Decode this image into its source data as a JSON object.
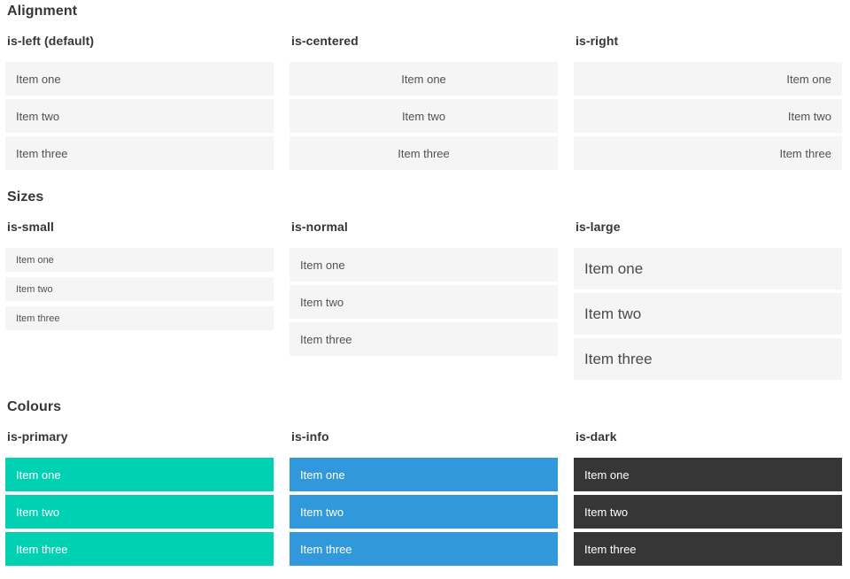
{
  "colors": {
    "item_background_light": "#f5f5f5",
    "item_text": "#515151",
    "primary": "#00d1b2",
    "info": "#3298dc",
    "dark": "#363636",
    "heading_text": "#363636",
    "colored_item_text": "#ffffff"
  },
  "sections": [
    {
      "title": "Alignment",
      "columns": [
        {
          "label": "is-left (default)",
          "items": [
            "Item one",
            "Item two",
            "Item three"
          ]
        },
        {
          "label": "is-centered",
          "items": [
            "Item one",
            "Item two",
            "Item three"
          ]
        },
        {
          "label": "is-right",
          "items": [
            "Item one",
            "Item two",
            "Item three"
          ]
        }
      ]
    },
    {
      "title": "Sizes",
      "columns": [
        {
          "label": "is-small",
          "items": [
            "Item one",
            "Item two",
            "Item three"
          ]
        },
        {
          "label": "is-normal",
          "items": [
            "Item one",
            "Item two",
            "Item three"
          ]
        },
        {
          "label": "is-large",
          "items": [
            "Item one",
            "Item two",
            "Item three"
          ]
        }
      ]
    },
    {
      "title": "Colours",
      "columns": [
        {
          "label": "is-primary",
          "items": [
            "Item one",
            "Item two",
            "Item three"
          ]
        },
        {
          "label": "is-info",
          "items": [
            "Item one",
            "Item two",
            "Item three"
          ]
        },
        {
          "label": "is-dark",
          "items": [
            "Item one",
            "Item two",
            "Item three"
          ]
        }
      ]
    }
  ]
}
